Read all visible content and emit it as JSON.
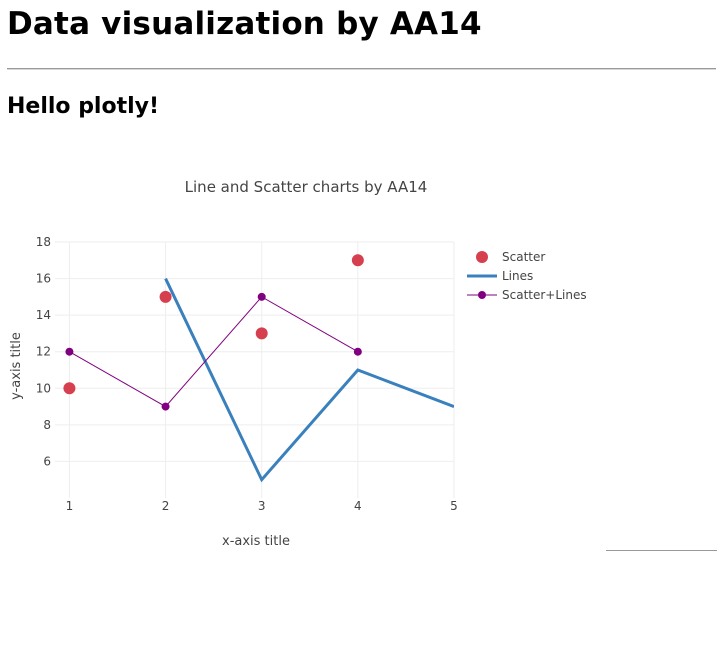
{
  "page": {
    "heading": "Data visualization by AA14",
    "subheading": "Hello plotly!"
  },
  "chart_data": {
    "type": "scatter",
    "title": "Line and Scatter charts by AA14",
    "xlabel": "x-axis title",
    "ylabel": "y-axis title",
    "xlim": [
      0.85,
      5
    ],
    "ylim": [
      4,
      18
    ],
    "xticks": [
      1,
      2,
      3,
      4,
      5
    ],
    "yticks": [
      6,
      8,
      10,
      12,
      14,
      16,
      18
    ],
    "grid": true,
    "legend_position": "top-right",
    "series": [
      {
        "name": "Scatter",
        "mode": "markers",
        "color": "#d6404e",
        "x": [
          1,
          2,
          3,
          4
        ],
        "y": [
          10,
          15,
          13,
          17
        ]
      },
      {
        "name": "Lines",
        "mode": "lines",
        "color": "#3a80bd",
        "x": [
          2,
          3,
          4,
          5
        ],
        "y": [
          16,
          5,
          11,
          9
        ]
      },
      {
        "name": "Scatter+Lines",
        "mode": "lines+markers",
        "color": "#800080",
        "x": [
          1,
          2,
          3,
          4
        ],
        "y": [
          12,
          9,
          15,
          12
        ]
      }
    ]
  }
}
